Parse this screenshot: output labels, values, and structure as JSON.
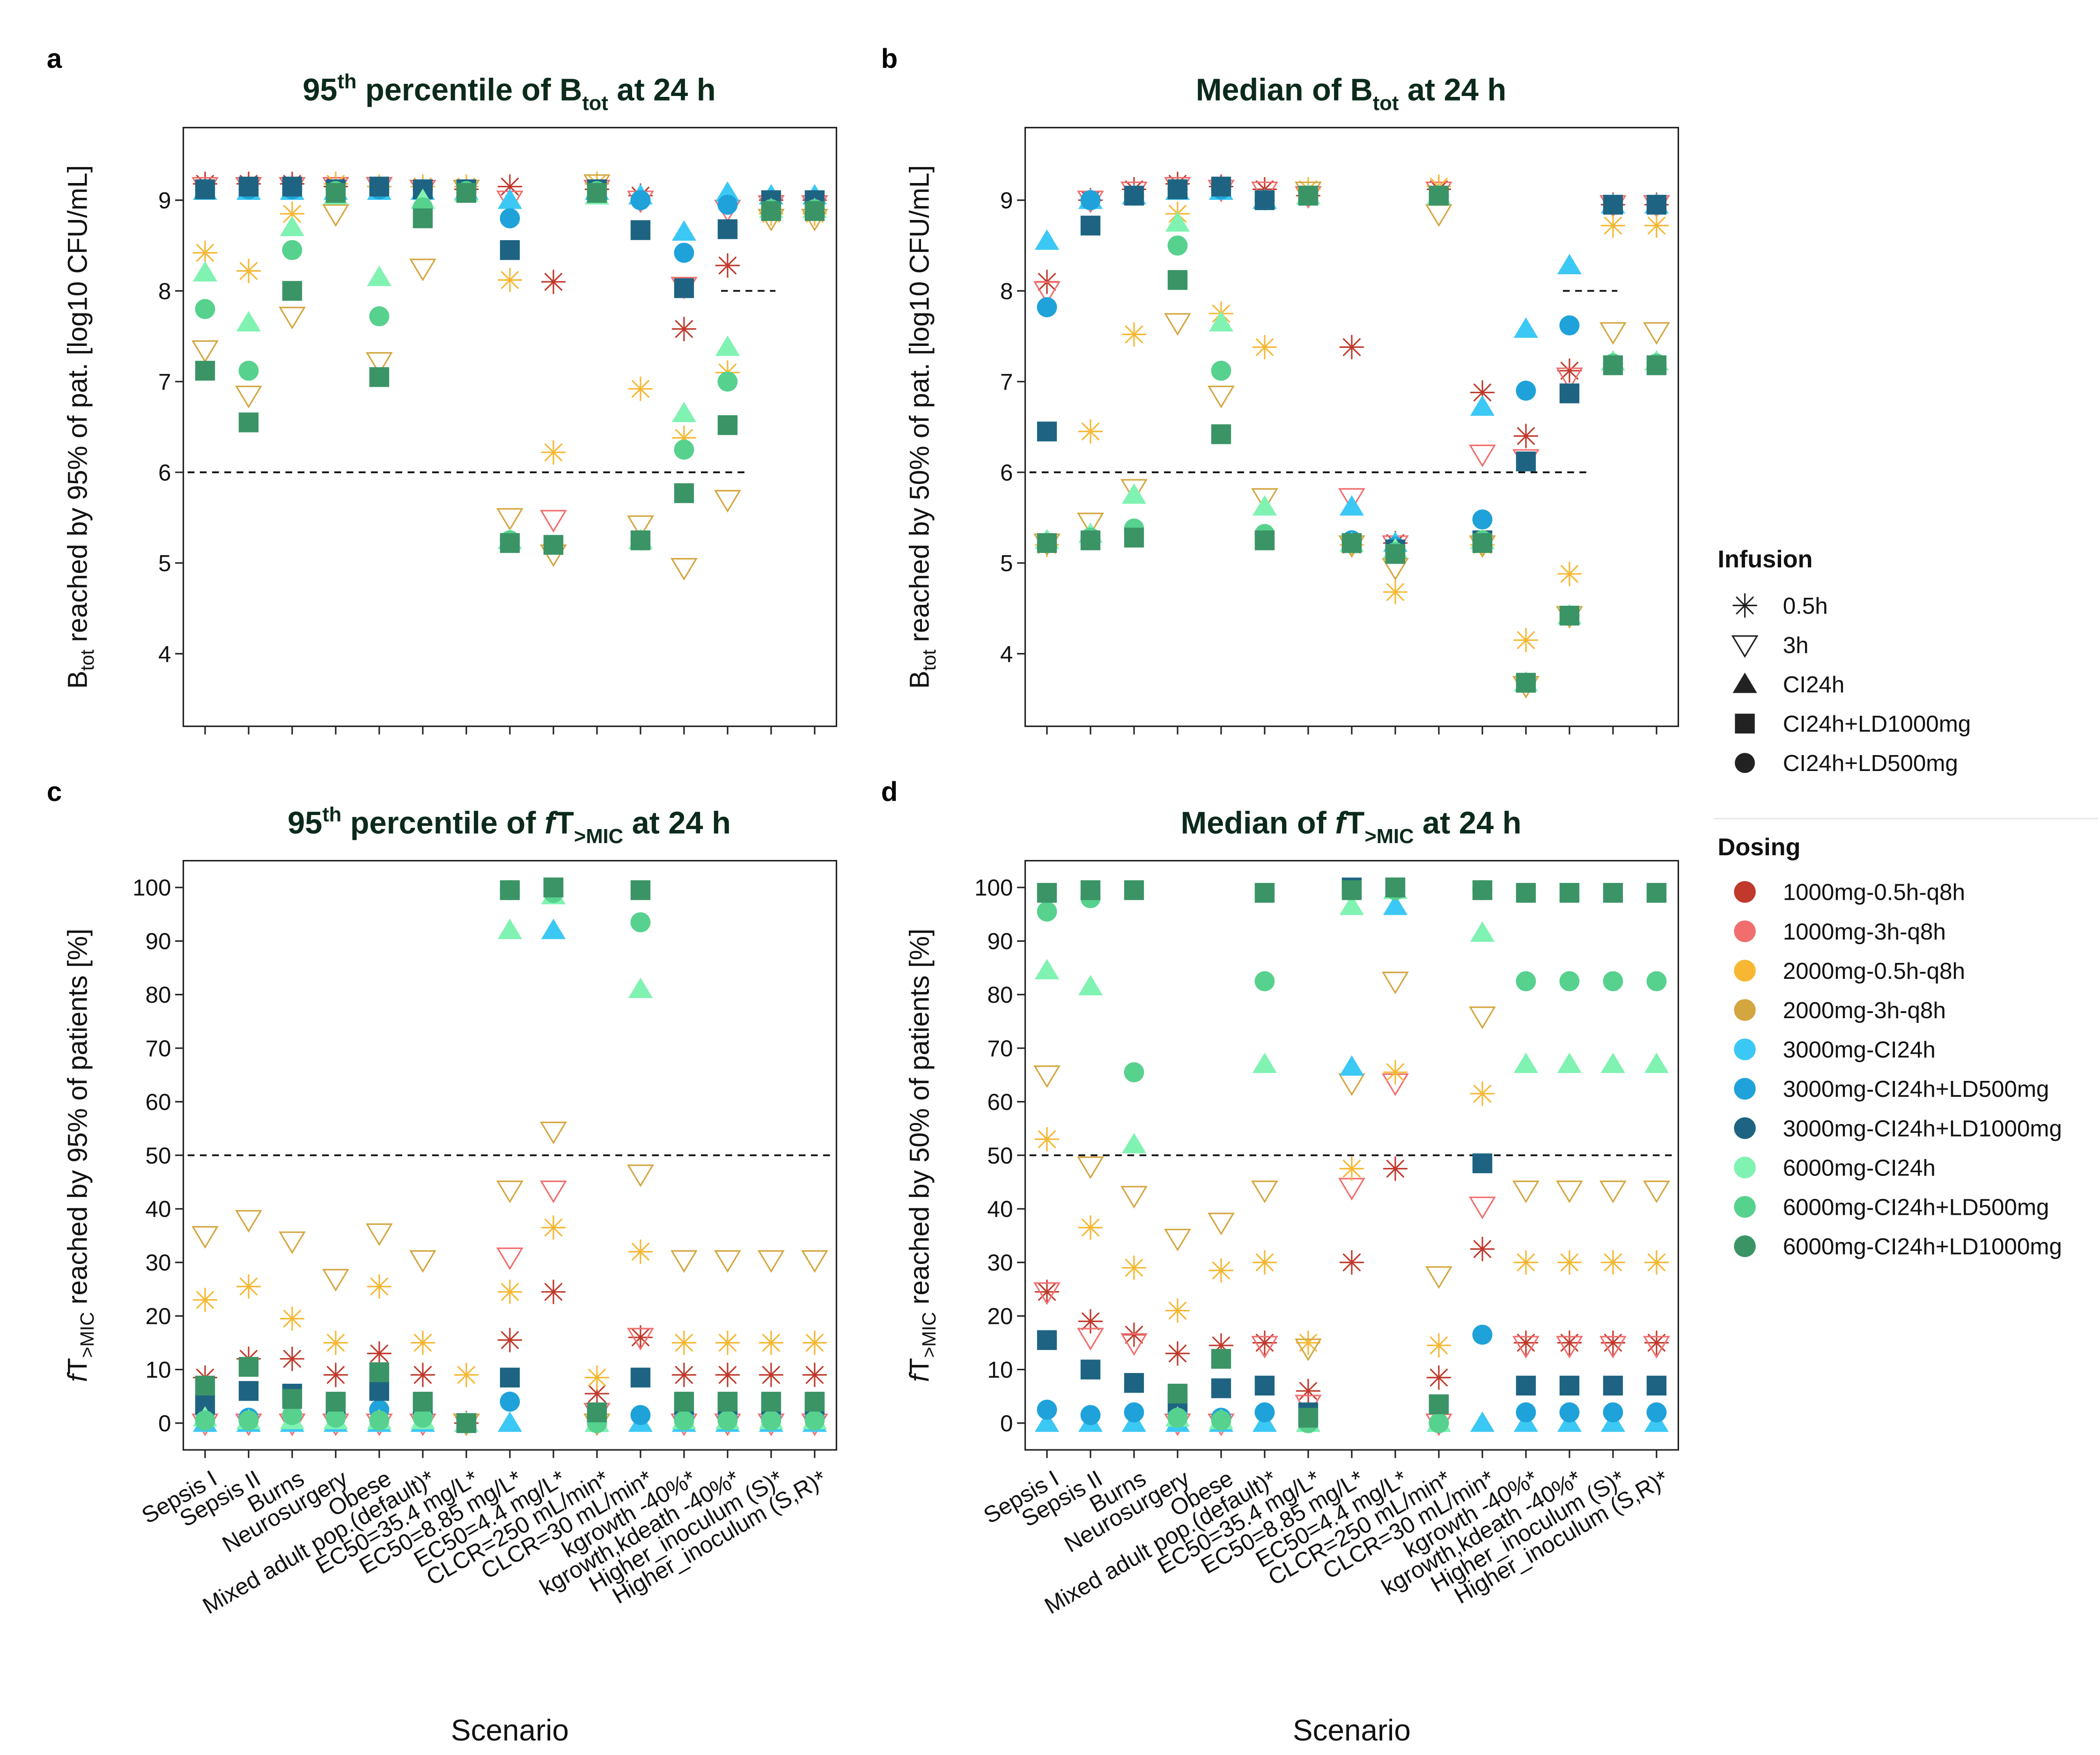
{
  "figure": {
    "x_title": "Scenario",
    "scenarios": [
      "Sepsis I",
      "Sepsis II",
      "Burns",
      "Neurosurgery",
      "Obese",
      "Mixed adult pop.(default)*",
      "EC50=35.4 mg/L*",
      "EC50=8.85 mg/L*",
      "EC50=4.4 mg/L*",
      "CLCR=250 mL/min*",
      "CLCR=30 mL/min*",
      "kgrowth -40%*",
      "kgrowth,kdeath -40%*",
      "Higher_inoculum (S)*",
      "Higher_inoculum (S,R)*"
    ],
    "dosing_colors": {
      "1000mg-0.5h-q8h": "#c0392b",
      "1000mg-3h-q8h": "#f26d6d",
      "2000mg-0.5h-q8h": "#f7b733",
      "2000mg-3h-q8h": "#d4a640",
      "3000mg-CI24h": "#3cc8f4",
      "3000mg-CI24h+LD500mg": "#1fa2d9",
      "3000mg-CI24h+LD1000mg": "#1e6482",
      "6000mg-CI24h": "#80f2b2",
      "6000mg-CI24h+LD500mg": "#57d18e",
      "6000mg-CI24h+LD1000mg": "#3b9466"
    },
    "dosing_infusion": {
      "1000mg-0.5h-q8h": "0.5h",
      "1000mg-3h-q8h": "3h",
      "2000mg-0.5h-q8h": "0.5h",
      "2000mg-3h-q8h": "3h",
      "3000mg-CI24h": "CI24h",
      "3000mg-CI24h+LD500mg": "CI24h+LD500mg",
      "3000mg-CI24h+LD1000mg": "CI24h+LD1000mg",
      "6000mg-CI24h": "CI24h",
      "6000mg-CI24h+LD500mg": "CI24h+LD500mg",
      "6000mg-CI24h+LD1000mg": "CI24h+LD1000mg"
    }
  },
  "legend": {
    "infusion_title": "Infusion",
    "infusion": [
      "0.5h",
      "3h",
      "CI24h",
      "CI24h+LD1000mg",
      "CI24h+LD500mg"
    ],
    "dosing_title": "Dosing",
    "dosing": [
      "1000mg-0.5h-q8h",
      "1000mg-3h-q8h",
      "2000mg-0.5h-q8h",
      "2000mg-3h-q8h",
      "3000mg-CI24h",
      "3000mg-CI24h+LD500mg",
      "3000mg-CI24h+LD1000mg",
      "6000mg-CI24h",
      "6000mg-CI24h+LD500mg",
      "6000mg-CI24h+LD1000mg"
    ]
  },
  "chart_data": [
    {
      "panel": "a",
      "type": "scatter",
      "title_parts": {
        "pre": "95",
        "sup": "th",
        "mid": " percentile of B",
        "sub": "tot",
        "post": " at 24 h"
      },
      "ylabel_parts": {
        "pre": "B",
        "sub": "tot",
        "post": " reached by 95% of pat. [log10 CFU/mL]"
      },
      "ylim": [
        3.2,
        9.8
      ],
      "yticks": [
        4,
        5,
        6,
        7,
        8,
        9
      ],
      "show_xticklabels": false,
      "reference_lines": [
        {
          "y": 6,
          "from": 0.6,
          "to": 13.4
        },
        {
          "y": 8,
          "from": 12.85,
          "to": 14.1
        }
      ],
      "series": [
        {
          "name": "1000mg-0.5h-q8h",
          "values": [
            9.18,
            9.18,
            9.18,
            9.15,
            9.15,
            9.15,
            9.12,
            9.15,
            8.1,
            9.12,
            9.05,
            7.58,
            8.28,
            9.0,
            9.0
          ]
        },
        {
          "name": "1000mg-3h-q8h",
          "values": [
            9.15,
            9.15,
            9.15,
            9.15,
            9.15,
            9.12,
            9.12,
            9.0,
            5.48,
            9.12,
            9.0,
            8.05,
            8.9,
            8.95,
            8.95
          ]
        },
        {
          "name": "2000mg-0.5h-q8h",
          "values": [
            8.42,
            8.22,
            8.85,
            9.18,
            9.15,
            9.15,
            9.15,
            8.12,
            6.22,
            9.18,
            6.92,
            6.38,
            7.1,
            8.85,
            8.85
          ]
        },
        {
          "name": "2000mg-3h-q8h",
          "values": [
            7.35,
            6.85,
            7.72,
            8.85,
            7.22,
            8.25,
            9.12,
            5.5,
            5.1,
            9.18,
            5.42,
            4.95,
            5.7,
            8.8,
            8.8
          ]
        },
        {
          "name": "3000mg-CI24h",
          "values": [
            9.1,
            9.1,
            9.1,
            9.1,
            9.1,
            9.1,
            9.1,
            9.0,
            null,
            9.1,
            9.05,
            8.65,
            9.08,
            9.05,
            9.05
          ]
        },
        {
          "name": "3000mg-CI24h+LD500mg",
          "values": [
            9.12,
            9.12,
            9.12,
            9.12,
            9.12,
            9.12,
            9.12,
            8.8,
            null,
            9.12,
            9.0,
            8.42,
            8.95,
            9.0,
            9.0
          ]
        },
        {
          "name": "3000mg-CI24h+LD1000mg",
          "values": [
            9.12,
            9.15,
            9.15,
            9.12,
            9.15,
            9.12,
            9.12,
            8.45,
            null,
            9.12,
            8.67,
            8.03,
            8.68,
            9.0,
            9.0
          ]
        },
        {
          "name": "6000mg-CI24h",
          "values": [
            8.2,
            7.65,
            8.7,
            9.05,
            8.15,
            9.0,
            9.08,
            5.25,
            null,
            9.05,
            5.25,
            6.65,
            7.38,
            8.9,
            8.9
          ]
        },
        {
          "name": "6000mg-CI24h+LD500mg",
          "values": [
            7.8,
            7.12,
            8.45,
            9.1,
            7.72,
            8.92,
            9.1,
            5.25,
            null,
            9.1,
            5.25,
            6.25,
            7.0,
            8.9,
            8.9
          ]
        },
        {
          "name": "6000mg-CI24h+LD1000mg",
          "values": [
            7.12,
            6.55,
            8.0,
            9.08,
            7.05,
            8.8,
            9.08,
            5.22,
            5.2,
            9.08,
            5.25,
            5.77,
            6.52,
            8.88,
            8.88
          ]
        }
      ]
    },
    {
      "panel": "b",
      "type": "scatter",
      "title_parts": {
        "pre": "",
        "sup": "",
        "mid": "Median of B",
        "sub": "tot",
        "post": " at 24 h"
      },
      "ylabel_parts": {
        "pre": "B",
        "sub": "tot",
        "post": " reached by 50% of pat. [log10 CFU/mL]"
      },
      "ylim": [
        3.2,
        9.8
      ],
      "yticks": [
        4,
        5,
        6,
        7,
        8,
        9
      ],
      "show_xticklabels": false,
      "reference_lines": [
        {
          "y": 6,
          "from": 0.6,
          "to": 13.4
        },
        {
          "y": 8,
          "from": 12.85,
          "to": 14.1
        }
      ],
      "series": [
        {
          "name": "1000mg-0.5h-q8h",
          "values": [
            8.1,
            9.0,
            9.12,
            9.18,
            9.15,
            9.12,
            9.05,
            7.38,
            5.22,
            9.12,
            6.88,
            6.4,
            7.12,
            8.95,
            8.95
          ]
        },
        {
          "name": "1000mg-3h-q8h",
          "values": [
            8.0,
            9.0,
            9.1,
            9.15,
            9.12,
            9.1,
            9.05,
            5.72,
            5.2,
            9.1,
            6.2,
            6.15,
            7.05,
            8.95,
            8.95
          ]
        },
        {
          "name": "2000mg-0.5h-q8h",
          "values": [
            5.2,
            6.45,
            7.52,
            8.85,
            7.75,
            7.38,
            9.12,
            5.2,
            4.68,
            9.15,
            5.2,
            4.15,
            4.88,
            8.72,
            8.72
          ]
        },
        {
          "name": "2000mg-3h-q8h",
          "values": [
            5.22,
            5.45,
            5.82,
            7.65,
            6.85,
            5.72,
            9.1,
            5.2,
            4.95,
            8.85,
            5.2,
            3.65,
            4.42,
            7.55,
            7.55
          ]
        },
        {
          "name": "3000mg-CI24h",
          "values": [
            8.55,
            9.0,
            9.05,
            9.1,
            9.1,
            9.0,
            9.05,
            5.62,
            5.22,
            9.05,
            6.72,
            7.58,
            8.28,
            8.95,
            8.95
          ]
        },
        {
          "name": "3000mg-CI24h+LD500mg",
          "values": [
            7.82,
            9.0,
            9.05,
            9.12,
            9.12,
            9.0,
            9.05,
            5.25,
            5.18,
            9.05,
            5.48,
            6.9,
            7.62,
            8.95,
            8.95
          ]
        },
        {
          "name": "3000mg-CI24h+LD1000mg",
          "values": [
            6.45,
            8.72,
            9.05,
            9.12,
            9.15,
            9.0,
            9.05,
            5.22,
            5.15,
            9.05,
            5.25,
            6.12,
            6.87,
            8.95,
            8.95
          ]
        },
        {
          "name": "6000mg-CI24h",
          "values": [
            5.25,
            5.32,
            5.75,
            8.75,
            7.65,
            5.62,
            9.05,
            5.22,
            5.15,
            9.05,
            5.25,
            3.68,
            4.42,
            7.22,
            7.22
          ]
        },
        {
          "name": "6000mg-CI24h+LD500mg",
          "values": [
            5.22,
            5.28,
            5.38,
            8.5,
            7.12,
            5.32,
            9.05,
            5.22,
            5.12,
            9.05,
            5.25,
            3.68,
            4.42,
            7.2,
            7.2
          ]
        },
        {
          "name": "6000mg-CI24h+LD1000mg",
          "values": [
            5.22,
            5.25,
            5.28,
            8.12,
            6.42,
            5.25,
            9.05,
            5.22,
            5.1,
            9.05,
            5.22,
            3.68,
            4.42,
            7.18,
            7.18
          ]
        }
      ]
    },
    {
      "panel": "c",
      "type": "scatter",
      "title_parts": {
        "pre": "95",
        "sup": "th",
        "mid": " percentile of ",
        "f": "f",
        "tt": "T",
        "sub": ">MIC",
        "post": " at 24 h"
      },
      "ylabel_parts": {
        "f": "f",
        "tt": "T",
        "sub": ">MIC",
        "post": " reached by 95% of patients [%]"
      },
      "ylim": [
        -5,
        105
      ],
      "yticks": [
        0,
        10,
        20,
        30,
        40,
        50,
        60,
        70,
        80,
        90,
        100
      ],
      "show_xticklabels": true,
      "reference_lines": [
        {
          "y": 50,
          "from": 0.6,
          "to": 15.4
        }
      ],
      "series": [
        {
          "name": "1000mg-0.5h-q8h",
          "values": [
            8.5,
            12.0,
            12.0,
            9.0,
            13.0,
            9.0,
            0.0,
            15.5,
            24.5,
            5.5,
            16.0,
            9.0,
            9.0,
            9.0,
            9.0
          ]
        },
        {
          "name": "1000mg-3h-q8h",
          "values": [
            0.0,
            0.0,
            0.0,
            0.0,
            0.0,
            0.0,
            0.0,
            31.0,
            43.5,
            2.0,
            16.0,
            0.0,
            0.0,
            0.0,
            0.0
          ]
        },
        {
          "name": "2000mg-0.5h-q8h",
          "values": [
            23.0,
            25.5,
            19.5,
            15.0,
            25.5,
            15.0,
            9.0,
            24.5,
            36.5,
            8.5,
            32.0,
            15.0,
            15.0,
            15.0,
            15.0
          ]
        },
        {
          "name": "2000mg-3h-q8h",
          "values": [
            35.0,
            38.0,
            34.0,
            27.0,
            35.5,
            30.5,
            0.0,
            43.5,
            54.5,
            0.0,
            46.5,
            30.5,
            30.5,
            30.5,
            30.5
          ]
        },
        {
          "name": "3000mg-CI24h",
          "values": [
            0.0,
            0.0,
            0.0,
            0.0,
            0.0,
            0.0,
            0.0,
            0.0,
            92.0,
            0.0,
            0.0,
            0.0,
            0.0,
            0.0,
            0.0
          ]
        },
        {
          "name": "3000mg-CI24h+LD500mg",
          "values": [
            2.0,
            1.0,
            1.5,
            1.5,
            2.5,
            1.5,
            0.0,
            4.0,
            null,
            0.0,
            1.5,
            1.0,
            1.0,
            1.0,
            1.0
          ]
        },
        {
          "name": "3000mg-CI24h+LD1000mg",
          "values": [
            3.5,
            6.0,
            5.5,
            3.5,
            6.0,
            3.5,
            0.0,
            8.5,
            100.0,
            2.0,
            8.5,
            3.5,
            3.5,
            3.5,
            3.5
          ]
        },
        {
          "name": "6000mg-CI24h",
          "values": [
            1.0,
            0.5,
            0.5,
            0.5,
            0.5,
            0.5,
            0.0,
            92.0,
            98.5,
            0.0,
            81.0,
            0.5,
            0.5,
            0.5,
            0.5
          ]
        },
        {
          "name": "6000mg-CI24h+LD500mg",
          "values": [
            0.5,
            0.5,
            1.5,
            1.0,
            0.5,
            1.0,
            0.0,
            99.5,
            99.0,
            0.0,
            93.5,
            0.5,
            0.5,
            0.5,
            0.5
          ]
        },
        {
          "name": "6000mg-CI24h+LD1000mg",
          "values": [
            7.0,
            10.5,
            4.5,
            4.0,
            9.5,
            4.0,
            0.0,
            99.5,
            100.0,
            2.0,
            99.5,
            4.0,
            4.0,
            4.0,
            4.0
          ]
        }
      ]
    },
    {
      "panel": "d",
      "type": "scatter",
      "title_parts": {
        "pre": "",
        "sup": "",
        "mid": "Median of ",
        "f": "f",
        "tt": "T",
        "sub": ">MIC",
        "post": " at 24 h"
      },
      "ylabel_parts": {
        "f": "f",
        "tt": "T",
        "sub": ">MIC",
        "post": " reached by 50% of patients [%]"
      },
      "ylim": [
        -5,
        105
      ],
      "yticks": [
        0,
        10,
        20,
        30,
        40,
        50,
        60,
        70,
        80,
        90,
        100
      ],
      "show_xticklabels": true,
      "reference_lines": [
        {
          "y": 50,
          "from": 0.6,
          "to": 15.4
        }
      ],
      "series": [
        {
          "name": "1000mg-0.5h-q8h",
          "values": [
            24.5,
            19.0,
            16.5,
            13.0,
            14.5,
            15.0,
            6.0,
            30.0,
            47.5,
            8.5,
            32.5,
            15.0,
            15.0,
            15.0,
            15.0
          ]
        },
        {
          "name": "1000mg-3h-q8h",
          "values": [
            24.5,
            16.0,
            15.0,
            0.0,
            0.0,
            14.5,
            3.5,
            44.0,
            63.5,
            0.0,
            40.5,
            14.5,
            14.5,
            14.5,
            14.5
          ]
        },
        {
          "name": "2000mg-0.5h-q8h",
          "values": [
            53.0,
            36.5,
            29.0,
            21.0,
            28.5,
            30.0,
            15.0,
            47.5,
            65.5,
            14.5,
            61.5,
            30.0,
            30.0,
            30.0,
            30.0
          ]
        },
        {
          "name": "2000mg-3h-q8h",
          "values": [
            65.0,
            48.0,
            42.5,
            34.5,
            37.5,
            43.5,
            14.0,
            63.5,
            82.5,
            27.5,
            76.0,
            43.5,
            43.5,
            43.5,
            43.5
          ]
        },
        {
          "name": "3000mg-CI24h",
          "values": [
            0.0,
            0.0,
            0.0,
            0.0,
            0.0,
            0.0,
            0.0,
            66.5,
            96.5,
            0.0,
            0.0,
            0.0,
            0.0,
            0.0,
            0.0
          ]
        },
        {
          "name": "3000mg-CI24h+LD500mg",
          "values": [
            2.5,
            1.5,
            2.0,
            2.0,
            1.0,
            2.0,
            0.0,
            null,
            null,
            0.0,
            16.5,
            2.0,
            2.0,
            2.0,
            2.0
          ]
        },
        {
          "name": "3000mg-CI24h+LD1000mg",
          "values": [
            15.5,
            10.0,
            7.5,
            4.0,
            6.5,
            7.0,
            2.0,
            100.0,
            100.0,
            3.5,
            48.5,
            7.0,
            7.0,
            7.0,
            7.0
          ]
        },
        {
          "name": "6000mg-CI24h",
          "values": [
            84.5,
            81.5,
            52.0,
            1.0,
            0.5,
            67.0,
            0.0,
            96.5,
            99.5,
            0.0,
            91.5,
            67.0,
            67.0,
            67.0,
            67.0
          ]
        },
        {
          "name": "6000mg-CI24h+LD500mg",
          "values": [
            95.5,
            98.0,
            65.5,
            1.0,
            0.5,
            82.5,
            0.0,
            99.5,
            99.5,
            0.0,
            99.5,
            82.5,
            82.5,
            82.5,
            82.5
          ]
        },
        {
          "name": "6000mg-CI24h+LD1000mg",
          "values": [
            99.0,
            99.5,
            99.5,
            5.5,
            12.0,
            99.0,
            1.0,
            99.5,
            100.0,
            3.5,
            99.5,
            99.0,
            99.0,
            99.0,
            99.0
          ]
        }
      ]
    }
  ]
}
